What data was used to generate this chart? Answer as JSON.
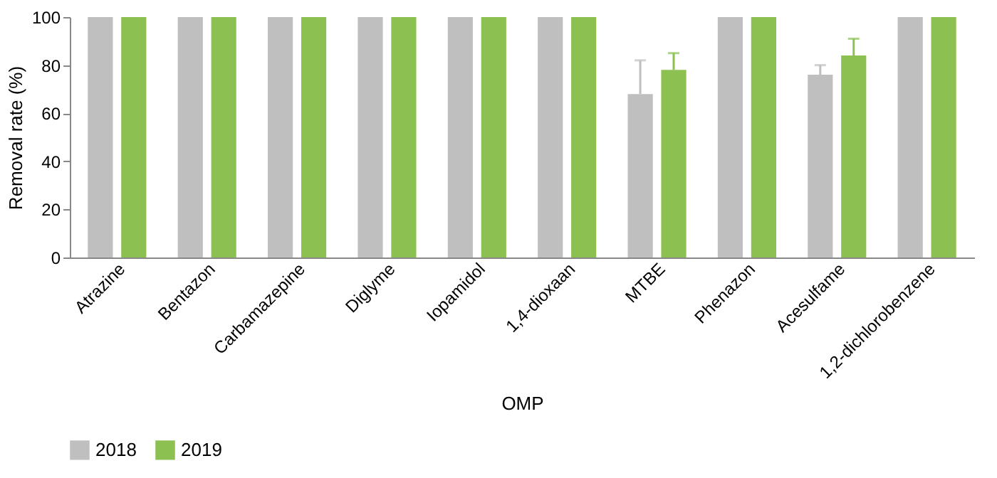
{
  "chart_data": {
    "type": "bar",
    "xlabel": "OMP",
    "ylabel": "Removal rate (%)",
    "categories": [
      "Atrazine",
      "Bentazon",
      "Carbamazepine",
      "Diglyme",
      "Iopamidol",
      "1,4-dioxaan",
      "MTBE",
      "Phenazon",
      "Acesulfame",
      "1,2-dichlorobenzene"
    ],
    "series": [
      {
        "name": "2018",
        "color": "#bfbfbf",
        "values": [
          100,
          100,
          100,
          100,
          100,
          100,
          68,
          100,
          76,
          100
        ],
        "errors": [
          null,
          null,
          null,
          null,
          null,
          null,
          [
            68,
            82
          ],
          null,
          [
            76,
            80
          ],
          null
        ]
      },
      {
        "name": "2019",
        "color": "#8cc152",
        "values": [
          100,
          100,
          100,
          100,
          100,
          100,
          78,
          100,
          84,
          100
        ],
        "errors": [
          null,
          null,
          null,
          null,
          null,
          null,
          [
            78,
            85
          ],
          null,
          [
            84,
            91
          ],
          null
        ]
      }
    ],
    "ylim": [
      0,
      100
    ],
    "yticks": [
      0,
      20,
      40,
      60,
      80,
      100
    ],
    "grid": false,
    "legend": "bottom"
  }
}
